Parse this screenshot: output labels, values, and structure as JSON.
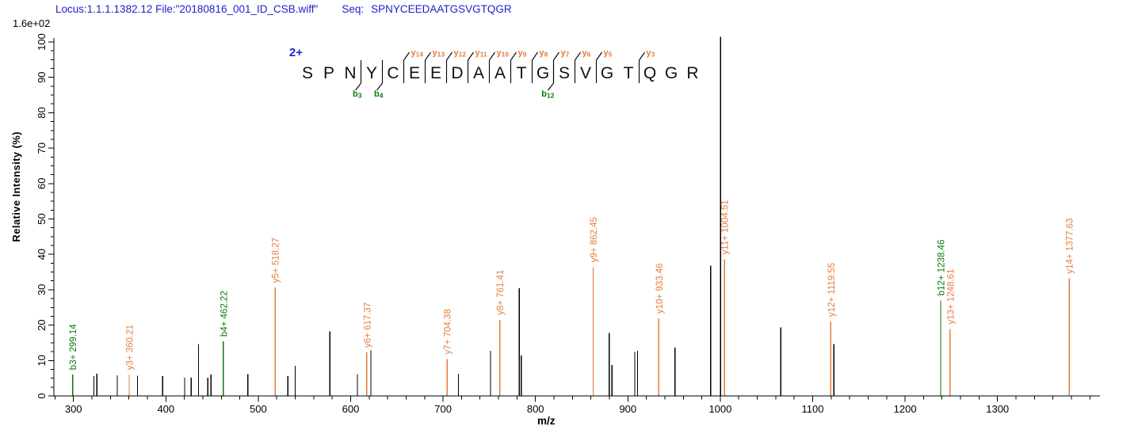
{
  "header": {
    "locus_file": "Locus:1.1.1.1382.12 File:\"20180816_001_ID_CSB.wiff\"",
    "seq_label": "Seq:",
    "sequence": "SPNYCEEDAATGSVGTQGR",
    "max_intensity": "1.6e+02"
  },
  "peptide_panel": {
    "charge": "2+",
    "residues": [
      "S",
      "P",
      "N",
      "Y",
      "C",
      "E",
      "E",
      "D",
      "A",
      "A",
      "T",
      "G",
      "S",
      "V",
      "G",
      "T",
      "Q",
      "G",
      "R"
    ],
    "y_ions": [
      {
        "series": "y",
        "num": 14,
        "gap": 5
      },
      {
        "series": "y",
        "num": 13,
        "gap": 6
      },
      {
        "series": "y",
        "num": 12,
        "gap": 7
      },
      {
        "series": "y",
        "num": 11,
        "gap": 8
      },
      {
        "series": "y",
        "num": 10,
        "gap": 9
      },
      {
        "series": "y",
        "num": 9,
        "gap": 10
      },
      {
        "series": "y",
        "num": 8,
        "gap": 11
      },
      {
        "series": "y",
        "num": 7,
        "gap": 12
      },
      {
        "series": "y",
        "num": 6,
        "gap": 13
      },
      {
        "series": "y",
        "num": 5,
        "gap": 14
      },
      {
        "series": "y",
        "num": 3,
        "gap": 16
      }
    ],
    "b_ions": [
      {
        "series": "b",
        "num": 3,
        "gap": 3
      },
      {
        "series": "b",
        "num": 4,
        "gap": 4
      },
      {
        "series": "b",
        "num": 12,
        "gap": 12
      }
    ]
  },
  "chart_data": {
    "type": "ms2-stick-spectrum",
    "xlabel": "m/z",
    "ylabel": "Relative  Intensity (%)",
    "xlim": [
      279,
      1408
    ],
    "ylim": [
      0,
      100
    ],
    "x_major_ticks": [
      300,
      400,
      500,
      600,
      700,
      800,
      900,
      1000,
      1100,
      1200,
      1300
    ],
    "x_minor_tick_range": [
      280,
      1400
    ],
    "x_minor_step": 20,
    "y_major_step": 10,
    "y_minor_step": 2.5,
    "grid": false,
    "legend": false,
    "colors": {
      "y_ion": "#e57e3c",
      "b_ion": "#0b7a0b",
      "peak": "#000000",
      "header_blue": "#2121c8",
      "axis": "#000000"
    },
    "peaks": [
      {
        "mz": 299.14,
        "intensity": 6.0,
        "type": "b",
        "label": "b3+ 299.14"
      },
      {
        "mz": 322.2,
        "intensity": 5.6,
        "type": "none"
      },
      {
        "mz": 325.3,
        "intensity": 6.3,
        "type": "none"
      },
      {
        "mz": 347.5,
        "intensity": 5.8,
        "type": "none"
      },
      {
        "mz": 360.21,
        "intensity": 6.0,
        "type": "y",
        "label": "y3+ 360.21"
      },
      {
        "mz": 369.3,
        "intensity": 5.7,
        "type": "none"
      },
      {
        "mz": 396.4,
        "intensity": 5.6,
        "type": "none"
      },
      {
        "mz": 420.3,
        "intensity": 5.1,
        "type": "none"
      },
      {
        "mz": 427.3,
        "intensity": 5.1,
        "type": "none"
      },
      {
        "mz": 435.4,
        "intensity": 14.6,
        "type": "none"
      },
      {
        "mz": 445.3,
        "intensity": 5.1,
        "type": "none"
      },
      {
        "mz": 448.9,
        "intensity": 6.0,
        "type": "none"
      },
      {
        "mz": 462.22,
        "intensity": 15.4,
        "type": "b",
        "label": "b4+ 462.22"
      },
      {
        "mz": 488.6,
        "intensity": 6.2,
        "type": "none"
      },
      {
        "mz": 518.27,
        "intensity": 30.6,
        "type": "y",
        "label": "y5+ 518.27"
      },
      {
        "mz": 532.1,
        "intensity": 5.6,
        "type": "none"
      },
      {
        "mz": 539.9,
        "intensity": 8.5,
        "type": "none"
      },
      {
        "mz": 577.4,
        "intensity": 18.2,
        "type": "none"
      },
      {
        "mz": 607.3,
        "intensity": 6.2,
        "type": "none"
      },
      {
        "mz": 617.37,
        "intensity": 12.3,
        "type": "y",
        "label": "y6+ 617.37"
      },
      {
        "mz": 621.9,
        "intensity": 12.9,
        "type": "none"
      },
      {
        "mz": 704.38,
        "intensity": 10.4,
        "type": "y",
        "label": "y7+ 704.38"
      },
      {
        "mz": 716.6,
        "intensity": 6.3,
        "type": "none"
      },
      {
        "mz": 751.3,
        "intensity": 12.8,
        "type": "none"
      },
      {
        "mz": 761.41,
        "intensity": 21.5,
        "type": "y",
        "label": "y8+ 761.41"
      },
      {
        "mz": 782.5,
        "intensity": 30.4,
        "type": "none"
      },
      {
        "mz": 784.6,
        "intensity": 11.4,
        "type": "none"
      },
      {
        "mz": 862.45,
        "intensity": 36.4,
        "type": "y",
        "label": "y9+ 862.45"
      },
      {
        "mz": 879.9,
        "intensity": 17.8,
        "type": "none"
      },
      {
        "mz": 882.9,
        "intensity": 8.7,
        "type": "none"
      },
      {
        "mz": 907.5,
        "intensity": 12.4,
        "type": "none"
      },
      {
        "mz": 910.4,
        "intensity": 12.8,
        "type": "none"
      },
      {
        "mz": 933.46,
        "intensity": 21.9,
        "type": "y",
        "label": "y10+ 933.46"
      },
      {
        "mz": 951.1,
        "intensity": 13.6,
        "type": "none"
      },
      {
        "mz": 989.7,
        "intensity": 36.8,
        "type": "none"
      },
      {
        "mz": 1000.2,
        "intensity": 101.5,
        "type": "none"
      },
      {
        "mz": 1004.51,
        "intensity": 38.6,
        "type": "y",
        "label": "y11+ 1004.51"
      },
      {
        "mz": 1065.6,
        "intensity": 19.4,
        "type": "none"
      },
      {
        "mz": 1119.55,
        "intensity": 21.0,
        "type": "y",
        "label": "y12+ 1119.55"
      },
      {
        "mz": 1122.9,
        "intensity": 14.6,
        "type": "none"
      },
      {
        "mz": 1238.46,
        "intensity": 27.0,
        "type": "b",
        "label": "b12+ 1238.46"
      },
      {
        "mz": 1248.61,
        "intensity": 18.9,
        "type": "y",
        "label": "y13+ 1248.61"
      },
      {
        "mz": 1377.63,
        "intensity": 33.2,
        "type": "y",
        "label": "y14+ 1377.63"
      }
    ]
  }
}
